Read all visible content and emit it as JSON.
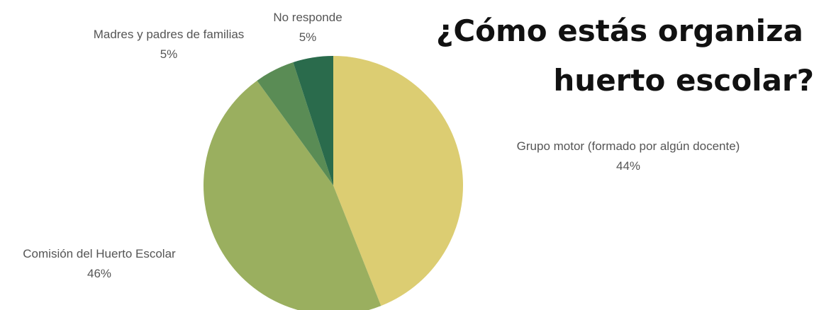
{
  "chart_data": {
    "type": "pie",
    "title": [
      "¿Cómo estás organiza",
      "huerto escolar?"
    ],
    "categories": [
      "Grupo motor (formado por algún docente)",
      "Comisión del Huerto Escolar",
      "Madres y padres de familias",
      "No responde"
    ],
    "values": [
      44,
      46,
      5,
      5
    ],
    "value_labels": [
      "44%",
      "46%",
      "5%",
      "5%"
    ],
    "colors": [
      "#dccd72",
      "#9aaf5f",
      "#5a8c55",
      "#2a6b4c"
    ]
  }
}
